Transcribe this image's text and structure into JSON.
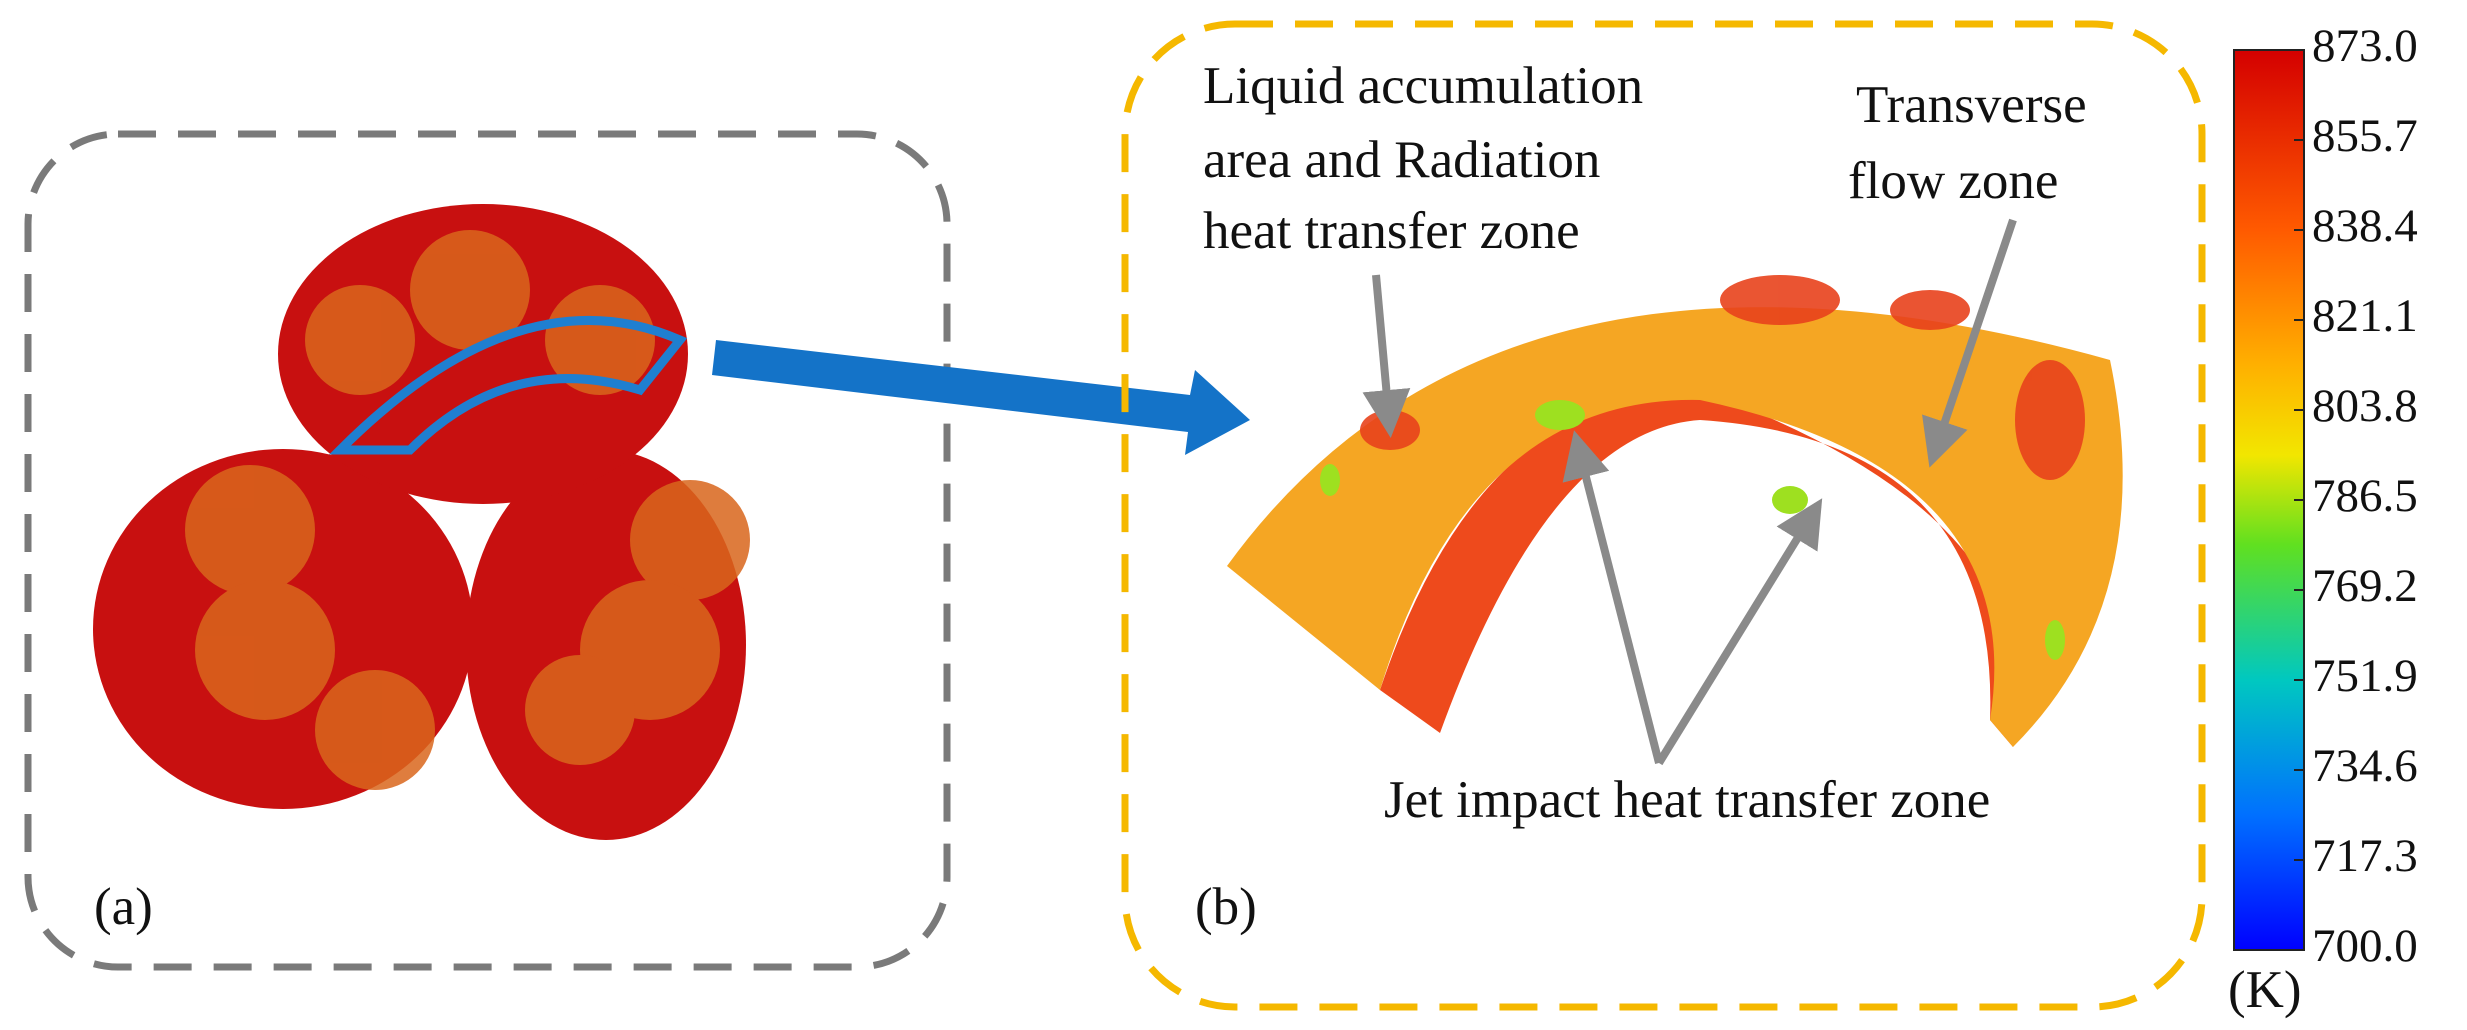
{
  "panels": {
    "a": {
      "label": "(a)"
    },
    "b": {
      "label": "(b)"
    }
  },
  "annotations": {
    "liquid": {
      "lines": [
        "Liquid accumulation",
        "area and Radiation",
        "heat transfer zone"
      ]
    },
    "transverse": {
      "lines": [
        "Transverse",
        "flow zone"
      ]
    },
    "jet": {
      "text": "Jet impact heat transfer zone"
    }
  },
  "colorbar": {
    "ticks": [
      {
        "value": 873,
        "label": "873.0"
      },
      {
        "value": 855.7,
        "label": "855.7"
      },
      {
        "value": 838.4,
        "label": "838.4"
      },
      {
        "value": 821.1,
        "label": "821.1"
      },
      {
        "value": 803.8,
        "label": "803.8"
      },
      {
        "value": 786.5,
        "label": "786.5"
      },
      {
        "value": 769.2,
        "label": "769.2"
      },
      {
        "value": 751.9,
        "label": "751.9"
      },
      {
        "value": 734.6,
        "label": "734.6"
      },
      {
        "value": 717.3,
        "label": "717.3"
      },
      {
        "value": 700,
        "label": "700.0"
      }
    ],
    "unit": "(K)"
  }
}
